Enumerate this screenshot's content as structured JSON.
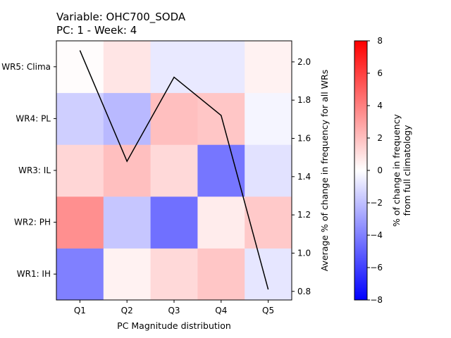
{
  "title_line1": "Variable: OHC700_SODA",
  "title_line2": "PC: 1 - Week: 4",
  "chart_data": {
    "type": "heatmap",
    "xlabel": "PC Magnitude distribution",
    "x_categories": [
      "Q1",
      "Q2",
      "Q3",
      "Q4",
      "Q5"
    ],
    "y_categories": [
      "WR1: IH",
      "WR2: PH",
      "WR3: IL",
      "WR4: PL",
      "WR5: Clima"
    ],
    "matrix": [
      [
        -4.0,
        0.4,
        1.2,
        1.8,
        -0.8
      ],
      [
        3.5,
        -1.8,
        -4.5,
        0.6,
        1.7
      ],
      [
        1.3,
        2.0,
        1.2,
        -4.3,
        -0.9
      ],
      [
        -1.5,
        -2.2,
        2.0,
        1.8,
        -0.3
      ],
      [
        0.1,
        0.8,
        -0.7,
        -0.7,
        0.4
      ]
    ],
    "colorbar": {
      "label_lines": [
        "% of change in frequency",
        "from full climatology"
      ],
      "range": [
        -8,
        8
      ],
      "ticks": [
        8,
        6,
        4,
        2,
        0,
        -2,
        -4,
        -6,
        -8
      ],
      "colormap": "bwr"
    },
    "line_series": {
      "color": "#000000",
      "x": [
        "Q1",
        "Q2",
        "Q3",
        "Q4",
        "Q5"
      ],
      "values": [
        2.06,
        1.48,
        1.92,
        1.72,
        0.81
      ]
    },
    "right_axis": {
      "label": "Average % of change in frequency for all WRs",
      "ylim": [
        0.755,
        2.11
      ],
      "ticks": [
        0.8,
        1.0,
        1.2,
        1.4,
        1.6,
        1.8,
        2.0
      ],
      "tick_labels": [
        "0.8",
        "1.0",
        "1.2",
        "1.4",
        "1.6",
        "1.8",
        "2.0"
      ]
    }
  }
}
